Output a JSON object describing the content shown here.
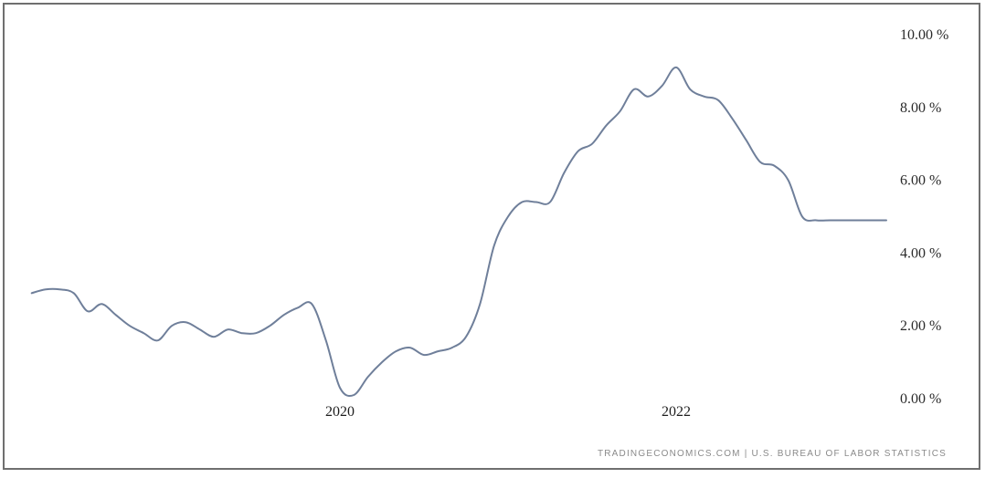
{
  "chart_data": {
    "type": "line",
    "title": "",
    "xlabel": "",
    "ylabel": "",
    "grid": false,
    "source": "TRADINGECONOMICS.COM | U.S. BUREAU OF LABOR STATISTICS",
    "ylim": [
      0,
      10
    ],
    "y_ticks": [
      {
        "value": 10,
        "label": "10.00 %"
      },
      {
        "value": 8,
        "label": "8.00 %"
      },
      {
        "value": 6,
        "label": "6.00 %"
      },
      {
        "value": 4,
        "label": "4.00 %"
      },
      {
        "value": 2,
        "label": "2.00 %"
      },
      {
        "value": 0,
        "label": "0.00 %"
      }
    ],
    "x_ticks": [
      {
        "value": "2020-01",
        "label": "2020"
      },
      {
        "value": "2022-01",
        "label": "2022"
      }
    ],
    "xlim": [
      "2018-03",
      "2023-04"
    ],
    "series": [
      {
        "color": "#6f7f9a",
        "x": [
          "2018-03",
          "2018-04",
          "2018-05",
          "2018-06",
          "2018-07",
          "2018-08",
          "2018-09",
          "2018-10",
          "2018-11",
          "2018-12",
          "2019-01",
          "2019-02",
          "2019-03",
          "2019-04",
          "2019-05",
          "2019-06",
          "2019-07",
          "2019-08",
          "2019-09",
          "2019-10",
          "2019-11",
          "2019-12",
          "2020-01",
          "2020-02",
          "2020-03",
          "2020-04",
          "2020-05",
          "2020-06",
          "2020-07",
          "2020-08",
          "2020-09",
          "2020-10",
          "2020-11",
          "2020-12",
          "2021-01",
          "2021-02",
          "2021-03",
          "2021-04",
          "2021-05",
          "2021-06",
          "2021-07",
          "2021-08",
          "2021-09",
          "2021-10",
          "2021-11",
          "2021-12",
          "2022-01",
          "2022-02",
          "2022-03",
          "2022-04",
          "2022-05",
          "2022-06",
          "2022-07",
          "2022-08",
          "2022-09",
          "2022-10",
          "2022-11",
          "2022-12",
          "2023-01",
          "2023-02",
          "2023-03",
          "2023-04"
        ],
        "values": [
          2.9,
          3.0,
          3.0,
          2.9,
          2.4,
          2.6,
          2.3,
          2.0,
          1.8,
          1.6,
          2.0,
          2.1,
          1.9,
          1.7,
          1.9,
          1.8,
          1.8,
          2.0,
          2.3,
          2.5,
          2.6,
          1.6,
          0.3,
          0.1,
          0.6,
          1.0,
          1.3,
          1.4,
          1.2,
          1.3,
          1.4,
          1.7,
          2.6,
          4.2,
          5.0,
          5.4,
          5.4,
          5.4,
          6.2,
          6.8,
          7.0,
          7.5,
          7.9,
          8.5,
          8.3,
          8.6,
          9.1,
          8.5,
          8.3,
          8.2,
          7.7,
          7.1,
          6.5,
          6.4,
          6.0,
          5.0,
          4.9,
          4.9,
          4.9,
          4.9,
          4.9,
          4.9
        ]
      }
    ]
  }
}
